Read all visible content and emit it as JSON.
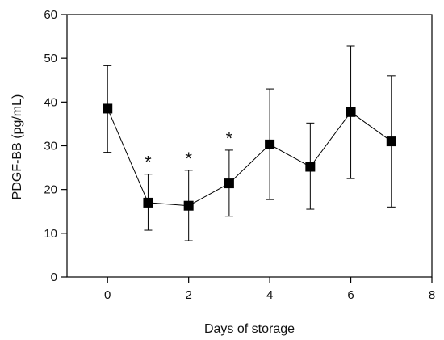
{
  "chart_data": {
    "type": "line",
    "title": "",
    "xlabel": "Days of storage",
    "ylabel": "PDGF-BB (pg/mL)",
    "xlim": [
      -1,
      8
    ],
    "ylim": [
      0,
      60
    ],
    "x_ticks": [
      0,
      2,
      4,
      6,
      8
    ],
    "y_ticks": [
      0,
      10,
      20,
      30,
      40,
      50,
      60
    ],
    "grid": false,
    "series": [
      {
        "color": "#000000",
        "marker": "square",
        "points": [
          {
            "x": 0,
            "y": 38.5,
            "err_low": 28.5,
            "err_high": 48.3,
            "label": ""
          },
          {
            "x": 1,
            "y": 17.0,
            "err_low": 10.7,
            "err_high": 23.5,
            "label": "*"
          },
          {
            "x": 2,
            "y": 16.3,
            "err_low": 8.3,
            "err_high": 24.4,
            "label": "*"
          },
          {
            "x": 3,
            "y": 21.4,
            "err_low": 13.9,
            "err_high": 29.0,
            "label": "*"
          },
          {
            "x": 4,
            "y": 30.3,
            "err_low": 17.7,
            "err_high": 43.0,
            "label": ""
          },
          {
            "x": 5,
            "y": 25.2,
            "err_low": 15.5,
            "err_high": 35.2,
            "label": ""
          },
          {
            "x": 6,
            "y": 37.7,
            "err_low": 22.5,
            "err_high": 52.8,
            "label": ""
          },
          {
            "x": 7,
            "y": 31.0,
            "err_low": 16.0,
            "err_high": 46.0,
            "label": ""
          }
        ]
      }
    ]
  }
}
